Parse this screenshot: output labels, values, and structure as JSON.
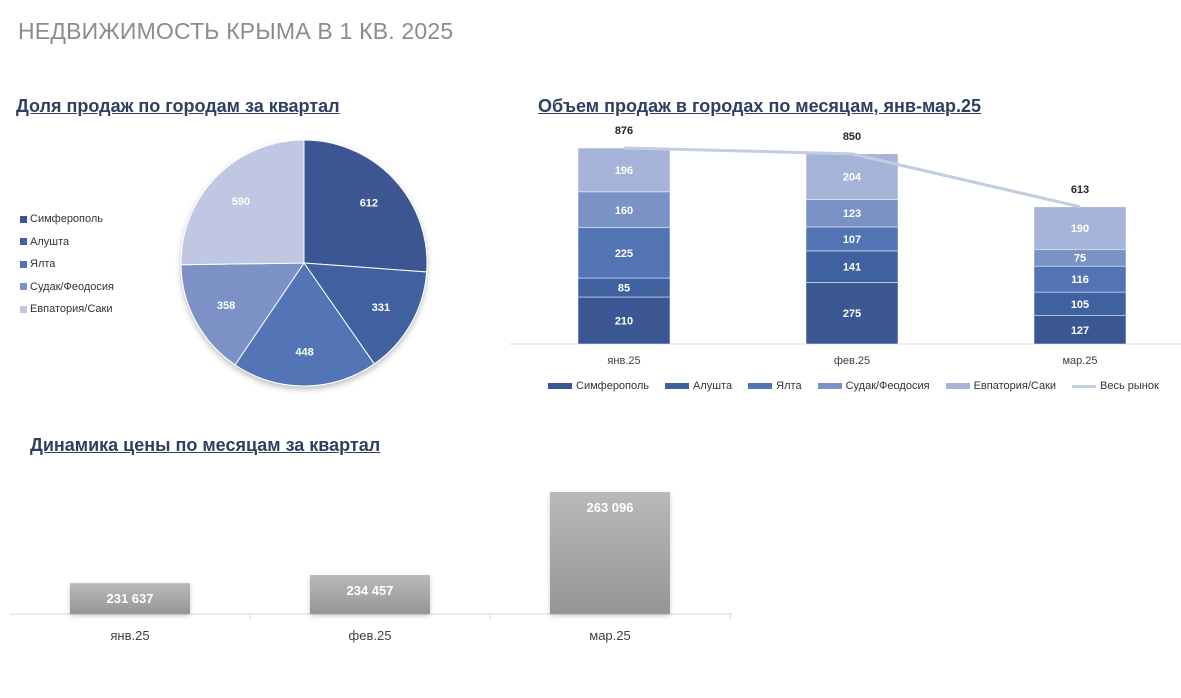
{
  "page": {
    "title": "НЕДВИЖИМОСТЬ КРЫМА В 1 КВ. 2025"
  },
  "colors": {
    "simferopol": "#3b5793",
    "alushta": "#40619f",
    "yalta": "#5274b5",
    "sudak": "#7b92c6",
    "evpatoria": "#a6b3d8",
    "evpatoria_pie": "#bfc7e3",
    "market_line": "#c2cde2",
    "price_bar_top": "#b9b9b9",
    "price_bar_bottom": "#969696"
  },
  "chart_data": [
    {
      "type": "pie",
      "title": "Доля продаж по городам за квартал",
      "categories": [
        "Симферополь",
        "Алушта",
        "Ялта",
        "Судак/Феодосия",
        "Евпатория/Саки"
      ],
      "values": [
        612,
        331,
        448,
        358,
        590
      ],
      "legend": "left"
    },
    {
      "type": "bar",
      "stacked": true,
      "title": "Объем продаж в городах по месяцам, янв-мар.25",
      "categories": [
        "янв.25",
        "фев.25",
        "мар.25"
      ],
      "series": [
        {
          "name": "Симферополь",
          "values": [
            210,
            275,
            127
          ]
        },
        {
          "name": "Алушта",
          "values": [
            85,
            141,
            105
          ]
        },
        {
          "name": "Ялта",
          "values": [
            225,
            107,
            116
          ]
        },
        {
          "name": "Судак/Феодосия",
          "values": [
            160,
            123,
            75
          ]
        },
        {
          "name": "Евпатория/Саки",
          "values": [
            196,
            204,
            190
          ]
        }
      ],
      "line": {
        "name": "Весь рынок",
        "type": "line",
        "values": [
          876,
          850,
          613
        ]
      },
      "legend": "bottom"
    },
    {
      "type": "bar",
      "title": "Динамика цены по месяцам за квартал",
      "categories": [
        "янв.25",
        "фев.25",
        "мар.25"
      ],
      "values": [
        231637,
        234457,
        263096
      ],
      "value_labels": [
        "231 637",
        "234 457",
        "263 096"
      ]
    }
  ]
}
